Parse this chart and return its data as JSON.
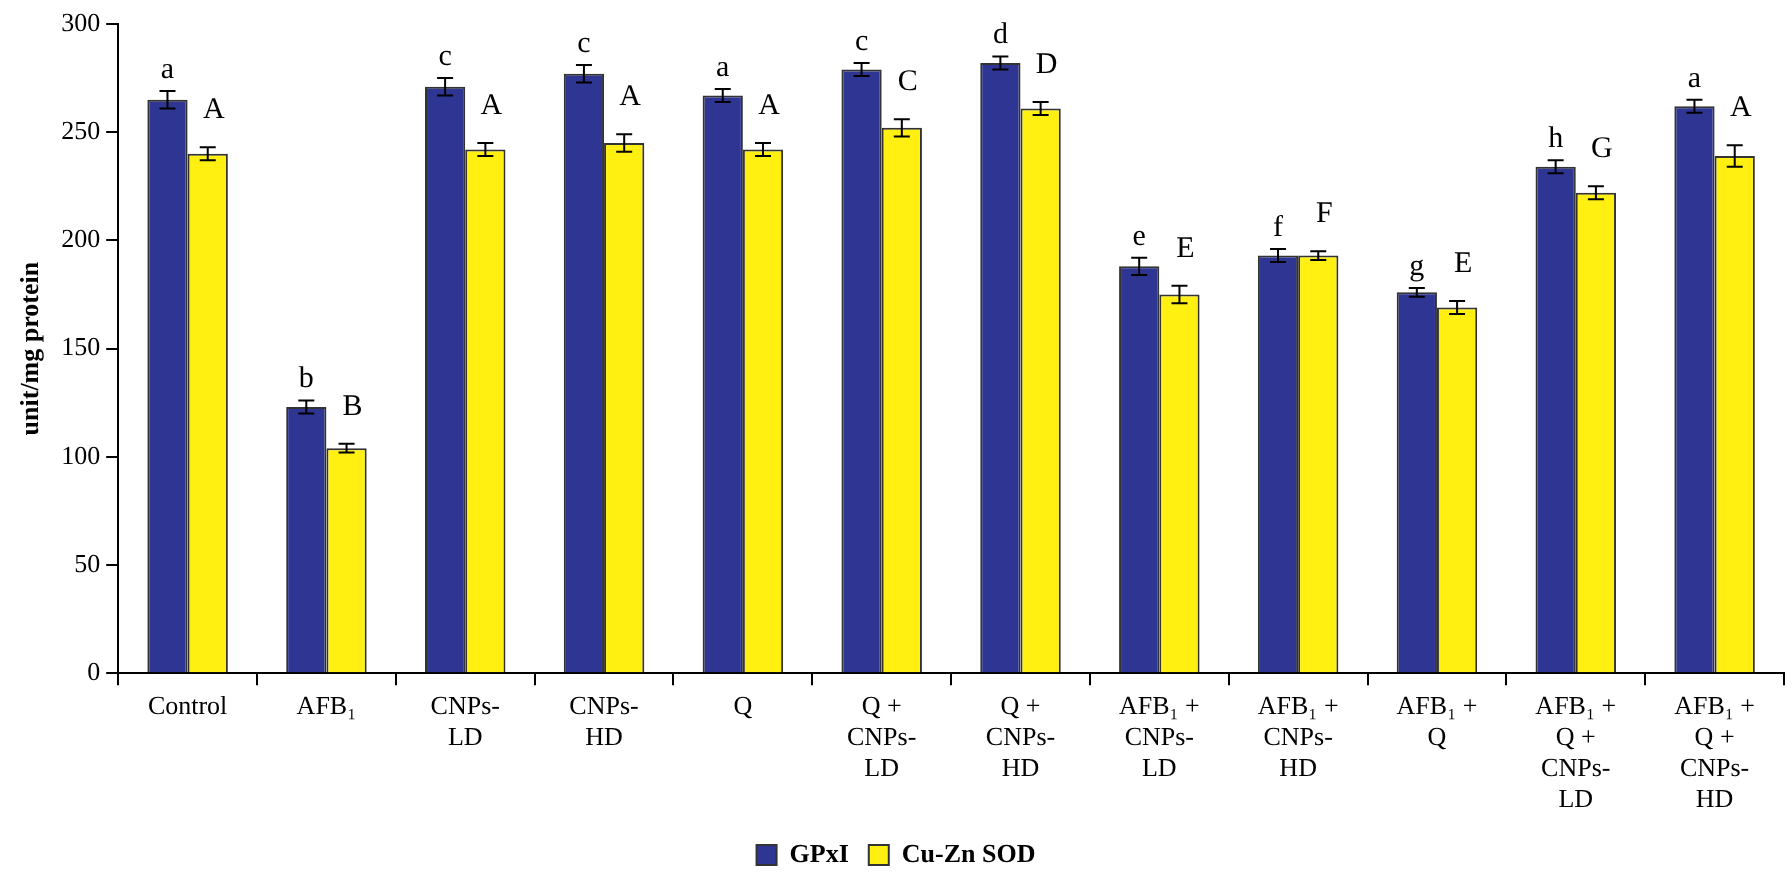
{
  "chart_data": {
    "type": "bar",
    "ylabel": "unit/mg protein",
    "categories": [
      "Control",
      "AFB₁",
      "CNPs-LD",
      "CNPs-HD",
      "Q",
      "Q + CNPs-LD",
      "Q + CNPs-HD",
      "AFB₁ + CNPs-LD",
      "AFB₁ + CNPs-HD",
      "AFB₁ + Q",
      "AFB₁ + Q + CNPs-LD",
      "AFB₁ + Q + CNPs-HD"
    ],
    "series": [
      {
        "name": "GPxI",
        "color": "#2e3592",
        "values": [
          265,
          123,
          271,
          277,
          267,
          279,
          282,
          188,
          193,
          176,
          234,
          262
        ],
        "errors": [
          4,
          3,
          4,
          4,
          3,
          3,
          3,
          4,
          3,
          2,
          3,
          3
        ],
        "value_labels": [
          "a",
          "b",
          "c",
          "c",
          "a",
          "c",
          "d",
          "e",
          "f",
          "g",
          "h",
          "a"
        ]
      },
      {
        "name": "Cu-Zn SOD",
        "color": "#fff011",
        "values": [
          240,
          104,
          242,
          245,
          242,
          252,
          261,
          175,
          193,
          169,
          222,
          239
        ],
        "errors": [
          3,
          2,
          3,
          4,
          3,
          4,
          3,
          4,
          2,
          3,
          3,
          5
        ],
        "value_labels": [
          "A",
          "B",
          "A",
          "A",
          "A",
          "C",
          "D",
          "E",
          "F",
          "E",
          "G",
          "A"
        ]
      }
    ],
    "ylim": [
      0,
      300
    ],
    "yticks": [
      0,
      50,
      100,
      150,
      200,
      250,
      300
    ],
    "grid": false,
    "legend": "bottom"
  }
}
